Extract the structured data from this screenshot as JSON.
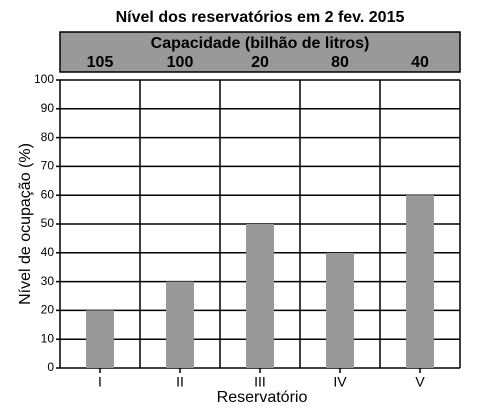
{
  "chart_data": {
    "type": "bar",
    "title": "Nível dos reservatórios em 2 fev. 2015",
    "capacity_label": "Capacidade (bilhão de litros)",
    "capacities": [
      105,
      100,
      20,
      80,
      40
    ],
    "categories": [
      "I",
      "II",
      "III",
      "IV",
      "V"
    ],
    "values": [
      20,
      30,
      50,
      40,
      60
    ],
    "color": "#999999",
    "x_label": "Reservatório",
    "y_label": "Nível de ocupação (%)",
    "ylim": [
      0,
      100
    ],
    "yticks": [
      0,
      10,
      20,
      30,
      40,
      50,
      60,
      70,
      80,
      90,
      100
    ],
    "grid": true
  }
}
